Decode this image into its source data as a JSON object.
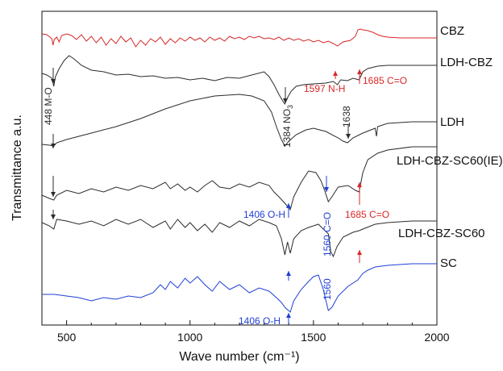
{
  "chart_data": {
    "type": "line",
    "title": "",
    "xlabel": "Wave number (cm⁻¹)",
    "ylabel": "Transmittance a.u.",
    "xlim": [
      400,
      2000
    ],
    "x_ticks": [
      500,
      1000,
      1500,
      2000
    ],
    "y_ticks": false,
    "grid": false,
    "legend": "labels at right end of each trace",
    "colors": {
      "red": "#d62728",
      "black": "#2b2b2b",
      "blue": "#1f3fd6",
      "grey": "#555555"
    },
    "series": [
      {
        "name": "CBZ",
        "color": "#d62728",
        "offset": 34,
        "points": [
          [
            400,
            8
          ],
          [
            420,
            9
          ],
          [
            440,
            14
          ],
          [
            445,
            22
          ],
          [
            450,
            15
          ],
          [
            460,
            12
          ],
          [
            470,
            18
          ],
          [
            480,
            10
          ],
          [
            500,
            8
          ],
          [
            520,
            10
          ],
          [
            540,
            15
          ],
          [
            560,
            9
          ],
          [
            580,
            17
          ],
          [
            600,
            11
          ],
          [
            620,
            19
          ],
          [
            640,
            12
          ],
          [
            660,
            22
          ],
          [
            680,
            14
          ],
          [
            700,
            20
          ],
          [
            720,
            11
          ],
          [
            740,
            18
          ],
          [
            760,
            13
          ],
          [
            780,
            24
          ],
          [
            800,
            16
          ],
          [
            820,
            22
          ],
          [
            840,
            14
          ],
          [
            860,
            18
          ],
          [
            880,
            12
          ],
          [
            900,
            21
          ],
          [
            920,
            14
          ],
          [
            940,
            19
          ],
          [
            960,
            13
          ],
          [
            980,
            17
          ],
          [
            1000,
            12
          ],
          [
            1020,
            16
          ],
          [
            1040,
            13
          ],
          [
            1060,
            18
          ],
          [
            1080,
            12
          ],
          [
            1100,
            16
          ],
          [
            1120,
            13
          ],
          [
            1140,
            17
          ],
          [
            1160,
            11
          ],
          [
            1180,
            14
          ],
          [
            1200,
            12
          ],
          [
            1220,
            15
          ],
          [
            1240,
            11
          ],
          [
            1260,
            13
          ],
          [
            1280,
            11
          ],
          [
            1300,
            14
          ],
          [
            1320,
            13
          ],
          [
            1340,
            15
          ],
          [
            1360,
            12
          ],
          [
            1380,
            16
          ],
          [
            1400,
            13
          ],
          [
            1420,
            16
          ],
          [
            1440,
            14
          ],
          [
            1460,
            17
          ],
          [
            1480,
            15
          ],
          [
            1500,
            18
          ],
          [
            1520,
            16
          ],
          [
            1540,
            19
          ],
          [
            1560,
            17
          ],
          [
            1580,
            20
          ],
          [
            1597,
            23
          ],
          [
            1620,
            18
          ],
          [
            1650,
            16
          ],
          [
            1670,
            11
          ],
          [
            1680,
            3
          ],
          [
            1690,
            2
          ],
          [
            1700,
            3
          ],
          [
            1720,
            4
          ],
          [
            1740,
            6
          ],
          [
            1760,
            9
          ],
          [
            1780,
            11
          ],
          [
            1800,
            12
          ],
          [
            1850,
            13
          ],
          [
            1900,
            13
          ],
          [
            1950,
            13
          ],
          [
            2000,
            13
          ]
        ]
      },
      {
        "name": "LDH-CBZ",
        "color": "#2b2b2b",
        "offset": 91,
        "points": [
          [
            400,
            0
          ],
          [
            420,
            2
          ],
          [
            440,
            6
          ],
          [
            448,
            16
          ],
          [
            455,
            4
          ],
          [
            470,
            -6
          ],
          [
            490,
            -16
          ],
          [
            510,
            -22
          ],
          [
            530,
            -18
          ],
          [
            560,
            -10
          ],
          [
            600,
            -4
          ],
          [
            650,
            -2
          ],
          [
            700,
            2
          ],
          [
            750,
            1
          ],
          [
            800,
            4
          ],
          [
            850,
            3
          ],
          [
            900,
            6
          ],
          [
            950,
            5
          ],
          [
            1000,
            8
          ],
          [
            1050,
            6
          ],
          [
            1100,
            9
          ],
          [
            1150,
            5
          ],
          [
            1200,
            6
          ],
          [
            1250,
            2
          ],
          [
            1300,
            -2
          ],
          [
            1320,
            4
          ],
          [
            1340,
            14
          ],
          [
            1360,
            26
          ],
          [
            1375,
            34
          ],
          [
            1384,
            38
          ],
          [
            1395,
            30
          ],
          [
            1410,
            22
          ],
          [
            1430,
            16
          ],
          [
            1460,
            14
          ],
          [
            1500,
            13
          ],
          [
            1550,
            12
          ],
          [
            1580,
            10
          ],
          [
            1597,
            14
          ],
          [
            1610,
            8
          ],
          [
            1638,
            9
          ],
          [
            1660,
            6
          ],
          [
            1685,
            8
          ],
          [
            1700,
            -2
          ],
          [
            1720,
            -6
          ],
          [
            1760,
            -9
          ],
          [
            1800,
            -10
          ],
          [
            1900,
            -10
          ],
          [
            2000,
            -10
          ]
        ]
      },
      {
        "name": "LDH",
        "color": "#2b2b2b",
        "offset": 179,
        "points": [
          [
            400,
            0
          ],
          [
            430,
            1
          ],
          [
            448,
            2
          ],
          [
            460,
            -2
          ],
          [
            500,
            -6
          ],
          [
            600,
            -14
          ],
          [
            700,
            -22
          ],
          [
            800,
            -32
          ],
          [
            900,
            -44
          ],
          [
            1000,
            -54
          ],
          [
            1100,
            -60
          ],
          [
            1200,
            -62
          ],
          [
            1250,
            -60
          ],
          [
            1300,
            -54
          ],
          [
            1330,
            -40
          ],
          [
            1350,
            -22
          ],
          [
            1370,
            -6
          ],
          [
            1384,
            2
          ],
          [
            1400,
            -4
          ],
          [
            1430,
            -12
          ],
          [
            1470,
            -18
          ],
          [
            1500,
            -20
          ],
          [
            1550,
            -16
          ],
          [
            1600,
            -8
          ],
          [
            1620,
            -4
          ],
          [
            1638,
            -2
          ],
          [
            1660,
            -8
          ],
          [
            1700,
            -14
          ],
          [
            1750,
            -20
          ],
          [
            1755,
            -10
          ],
          [
            1760,
            -22
          ],
          [
            1800,
            -26
          ],
          [
            1900,
            -28
          ],
          [
            2000,
            -28
          ]
        ]
      },
      {
        "name": "LDH-CBZ-SC60(IE)",
        "color": "#2b2b2b",
        "offset": 242,
        "points": [
          [
            400,
            0
          ],
          [
            430,
            4
          ],
          [
            448,
            6
          ],
          [
            460,
            0
          ],
          [
            500,
            -6
          ],
          [
            550,
            -2
          ],
          [
            600,
            -8
          ],
          [
            650,
            -4
          ],
          [
            700,
            -10
          ],
          [
            750,
            -6
          ],
          [
            800,
            -12
          ],
          [
            850,
            -8
          ],
          [
            900,
            -16
          ],
          [
            920,
            -8
          ],
          [
            950,
            -14
          ],
          [
            980,
            -6
          ],
          [
            1000,
            -10
          ],
          [
            1030,
            -4
          ],
          [
            1060,
            -12
          ],
          [
            1090,
            -18
          ],
          [
            1120,
            -10
          ],
          [
            1160,
            -8
          ],
          [
            1200,
            -14
          ],
          [
            1240,
            -10
          ],
          [
            1280,
            -16
          ],
          [
            1320,
            -12
          ],
          [
            1340,
            -4
          ],
          [
            1360,
            2
          ],
          [
            1384,
            10
          ],
          [
            1406,
            18
          ],
          [
            1420,
            2
          ],
          [
            1450,
            -16
          ],
          [
            1480,
            -30
          ],
          [
            1510,
            -28
          ],
          [
            1530,
            -18
          ],
          [
            1545,
            -6
          ],
          [
            1560,
            8
          ],
          [
            1575,
            2
          ],
          [
            1600,
            -10
          ],
          [
            1640,
            -12
          ],
          [
            1670,
            -6
          ],
          [
            1685,
            -4
          ],
          [
            1700,
            -28
          ],
          [
            1720,
            -44
          ],
          [
            1760,
            -52
          ],
          [
            1800,
            -56
          ],
          [
            1900,
            -60
          ],
          [
            2000,
            -60
          ]
        ]
      },
      {
        "name": "LDH-CBZ-SC60",
        "color": "#2b2b2b",
        "offset": 276,
        "points": [
          [
            400,
            0
          ],
          [
            430,
            4
          ],
          [
            448,
            8
          ],
          [
            460,
            -4
          ],
          [
            500,
            -2
          ],
          [
            550,
            2
          ],
          [
            600,
            -2
          ],
          [
            650,
            4
          ],
          [
            700,
            -4
          ],
          [
            750,
            2
          ],
          [
            800,
            -4
          ],
          [
            850,
            6
          ],
          [
            900,
            -2
          ],
          [
            920,
            8
          ],
          [
            950,
            -4
          ],
          [
            980,
            6
          ],
          [
            1000,
            0
          ],
          [
            1030,
            10
          ],
          [
            1060,
            2
          ],
          [
            1090,
            12
          ],
          [
            1120,
            0
          ],
          [
            1160,
            6
          ],
          [
            1200,
            -2
          ],
          [
            1240,
            4
          ],
          [
            1280,
            -4
          ],
          [
            1320,
            0
          ],
          [
            1350,
            4
          ],
          [
            1370,
            20
          ],
          [
            1384,
            40
          ],
          [
            1395,
            24
          ],
          [
            1406,
            38
          ],
          [
            1420,
            20
          ],
          [
            1450,
            10
          ],
          [
            1480,
            6
          ],
          [
            1500,
            4
          ],
          [
            1520,
            2
          ],
          [
            1540,
            8
          ],
          [
            1560,
            14
          ],
          [
            1570,
            36
          ],
          [
            1580,
            42
          ],
          [
            1595,
            30
          ],
          [
            1620,
            18
          ],
          [
            1660,
            12
          ],
          [
            1685,
            10
          ],
          [
            1700,
            8
          ],
          [
            1750,
            2
          ],
          [
            1800,
            0
          ],
          [
            1900,
            -2
          ],
          [
            2000,
            -2
          ]
        ]
      },
      {
        "name": "SC",
        "color": "#1f3fd6",
        "offset": 345,
        "points": [
          [
            400,
            20
          ],
          [
            450,
            20
          ],
          [
            500,
            22
          ],
          [
            550,
            24
          ],
          [
            600,
            28
          ],
          [
            650,
            24
          ],
          [
            700,
            26
          ],
          [
            750,
            22
          ],
          [
            800,
            24
          ],
          [
            850,
            18
          ],
          [
            880,
            8
          ],
          [
            900,
            14
          ],
          [
            920,
            4
          ],
          [
            950,
            12
          ],
          [
            980,
            0
          ],
          [
            1000,
            6
          ],
          [
            1030,
            -2
          ],
          [
            1060,
            8
          ],
          [
            1090,
            16
          ],
          [
            1120,
            4
          ],
          [
            1160,
            14
          ],
          [
            1200,
            8
          ],
          [
            1240,
            18
          ],
          [
            1280,
            12
          ],
          [
            1320,
            16
          ],
          [
            1350,
            24
          ],
          [
            1370,
            30
          ],
          [
            1384,
            36
          ],
          [
            1406,
            42
          ],
          [
            1420,
            28
          ],
          [
            1450,
            14
          ],
          [
            1480,
            4
          ],
          [
            1500,
            -2
          ],
          [
            1520,
            -4
          ],
          [
            1540,
            14
          ],
          [
            1560,
            40
          ],
          [
            1575,
            36
          ],
          [
            1600,
            22
          ],
          [
            1640,
            10
          ],
          [
            1680,
            2
          ],
          [
            1700,
            -6
          ],
          [
            1720,
            -10
          ],
          [
            1750,
            -14
          ],
          [
            1800,
            -16
          ],
          [
            1900,
            -18
          ],
          [
            2000,
            -18
          ]
        ]
      }
    ],
    "annotations": [
      {
        "text": "1597 N-H",
        "color": "#d62728"
      },
      {
        "text": "1685 C=O",
        "color": "#d62728"
      },
      {
        "text": "448 M-O",
        "color": "#2b2b2b"
      },
      {
        "text": "1384 NO",
        "sub": "3",
        "color": "#2b2b2b"
      },
      {
        "text": "1638",
        "color": "#2b2b2b"
      },
      {
        "text": "1406 O-H",
        "color": "#1f3fd6"
      },
      {
        "text": "1560 C=O",
        "color": "#1f3fd6"
      },
      {
        "text": "1685 C=O",
        "color": "#d62728"
      },
      {
        "text": "1406 O-H",
        "color": "#1f3fd6"
      },
      {
        "text": "1560",
        "color": "#1f3fd6"
      }
    ]
  }
}
